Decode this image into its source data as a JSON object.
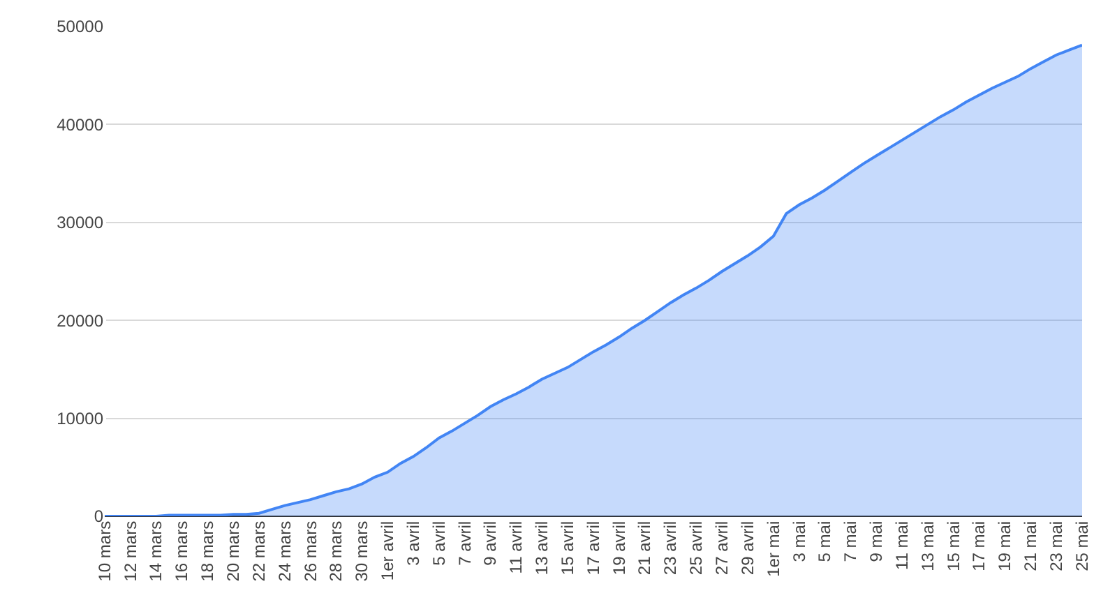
{
  "chart_data": {
    "type": "area",
    "categories": [
      "10 mars",
      null,
      "12 mars",
      null,
      "14 mars",
      null,
      "16 mars",
      null,
      "18 mars",
      null,
      "20 mars",
      null,
      "22 mars",
      null,
      "24 mars",
      null,
      "26 mars",
      null,
      "28 mars",
      null,
      "30 mars",
      null,
      "1er avril",
      null,
      "3 avril",
      null,
      "5 avril",
      null,
      "7 avril",
      null,
      "9 avril",
      null,
      "11 avril",
      null,
      "13 avril",
      null,
      "15 avril",
      null,
      "17 avril",
      null,
      "19 avril",
      null,
      "21 avril",
      null,
      "23 avril",
      null,
      "25 avril",
      null,
      "27 avril",
      null,
      "29 avril",
      null,
      "1er mai",
      null,
      "3 mai",
      null,
      "5 mai",
      null,
      "7 mai",
      null,
      "9 mai",
      null,
      "11 mai",
      null,
      "13 mai",
      null,
      "15 mai",
      null,
      "17 mai",
      null,
      "19 mai",
      null,
      "21 mai",
      null,
      "23 mai",
      null,
      "25 mai"
    ],
    "series": [
      {
        "color": "#4285f4",
        "values": [
          0,
          0,
          0,
          0,
          0,
          100,
          100,
          100,
          100,
          100,
          200,
          200,
          300,
          700,
          1100,
          1400,
          1700,
          2100,
          2500,
          2800,
          3300,
          4000,
          4500,
          5400,
          6100,
          7000,
          8000,
          8700,
          9500,
          10300,
          11200,
          11900,
          12500,
          13200,
          14000,
          14600,
          15200,
          16000,
          16800,
          17500,
          18300,
          19200,
          20000,
          20900,
          21800,
          22600,
          23300,
          24100,
          25000,
          25800,
          26600,
          27500,
          28600,
          30900,
          31800,
          32500,
          33300,
          34200,
          35100,
          36000,
          36800,
          37600,
          38400,
          39200,
          40000,
          40800,
          41500,
          42300,
          43000,
          43700,
          44300,
          44900,
          45700,
          46400,
          47100,
          47600,
          48100
        ]
      }
    ],
    "ylim": [
      0,
      50000
    ],
    "yticks": [
      0,
      10000,
      20000,
      30000,
      40000,
      50000
    ],
    "grid": "y"
  }
}
